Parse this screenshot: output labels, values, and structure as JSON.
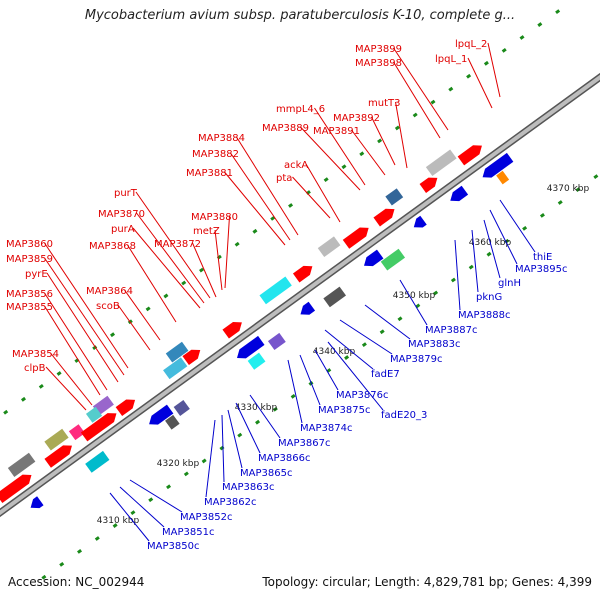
{
  "title": "Mycobacterium avium subsp. paratuberculosis K-10, complete g...",
  "footer": {
    "accession": "Accession: NC_002944",
    "summary": "Topology: circular; Length: 4,829,781 bp; Genes: 4,399"
  },
  "colors": {
    "forward_label": "#e00000",
    "reverse_label": "#0000cc",
    "axis": "#888888",
    "tick": "#1a8a1a"
  },
  "scale_labels": [
    "4310 kbp",
    "4320 kbp",
    "4330 kbp",
    "4340 kbp",
    "4350 kbp",
    "4360 kbp",
    "4370 kbp"
  ],
  "forward_genes": [
    "MAP3899",
    "MAP3898",
    "lpqL_2",
    "lpqL_1",
    "mutT3",
    "mmpL4_6",
    "MAP3892",
    "MAP3889",
    "MAP3891",
    "MAP3884",
    "MAP3882",
    "MAP3881",
    "ackA",
    "pta",
    "purT",
    "MAP3870",
    "purA",
    "MAP3872",
    "MAP3880",
    "metZ",
    "MAP3860",
    "MAP3859",
    "MAP3868",
    "pyrE",
    "MAP3864",
    "MAP3856",
    "scoB",
    "MAP3855",
    "MAP3854",
    "clpB"
  ],
  "reverse_genes": [
    "thiE",
    "MAP3895c",
    "glnH",
    "pknG",
    "MAP3888c",
    "MAP3887c",
    "MAP3883c",
    "MAP3879c",
    "fadE7",
    "MAP3876c",
    "fadE20_3",
    "MAP3875c",
    "MAP3874c",
    "MAP3867c",
    "MAP3866c",
    "MAP3865c",
    "MAP3863c",
    "MAP3862c",
    "MAP3852c",
    "MAP3851c",
    "MAP3850c"
  ]
}
